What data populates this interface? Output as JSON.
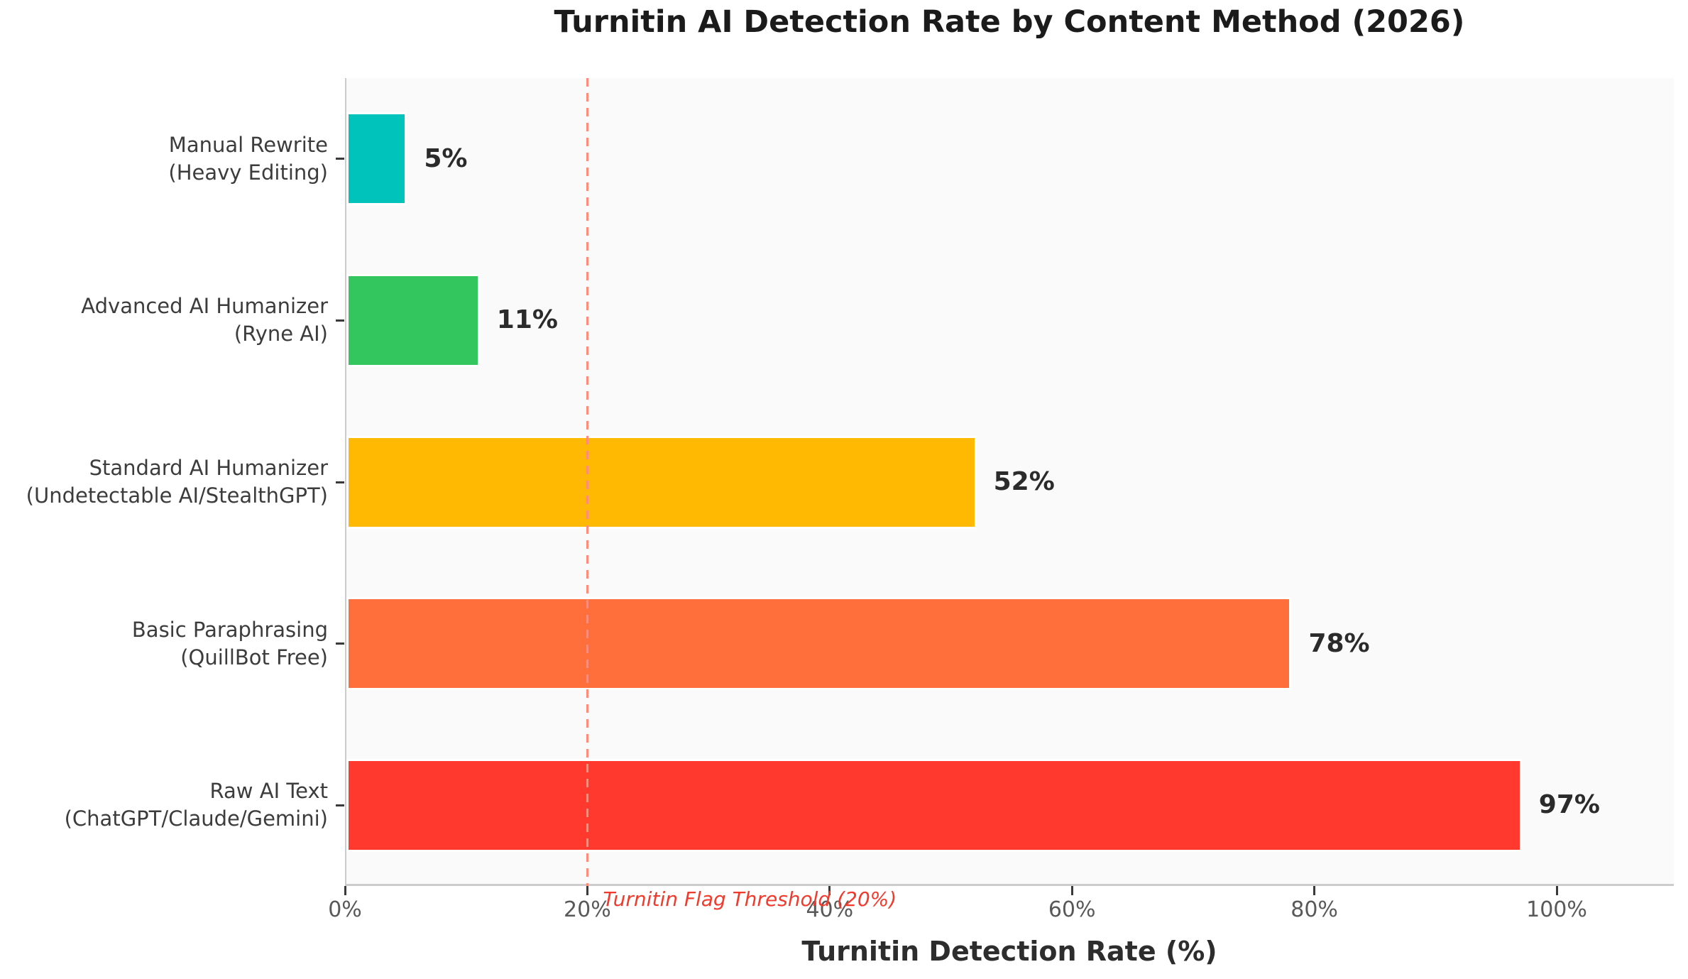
{
  "chart_data": {
    "type": "bar",
    "orientation": "horizontal",
    "title": "Turnitin AI Detection Rate by Content Method (2026)",
    "xlabel": "Turnitin Detection Rate (%)",
    "categories": [
      [
        "Manual Rewrite",
        "(Heavy Editing)"
      ],
      [
        "Advanced AI Humanizer",
        "(Ryne AI)"
      ],
      [
        "Standard AI Humanizer",
        "(Undetectable AI/StealthGPT)"
      ],
      [
        "Basic Paraphrasing",
        "(QuillBot Free)"
      ],
      [
        "Raw AI Text",
        "(ChatGPT/Claude/Gemini)"
      ]
    ],
    "values": [
      5,
      11,
      52,
      78,
      97
    ],
    "value_labels": [
      "5%",
      "11%",
      "52%",
      "78%",
      "97%"
    ],
    "bar_colors": [
      "#00C3BC",
      "#33C55E",
      "#FFB903",
      "#FF6F3C",
      "#FF392E"
    ],
    "xlim": [
      0,
      110
    ],
    "x_ticks": [
      {
        "value": 0,
        "label": "0%"
      },
      {
        "value": 20,
        "label": "20%"
      },
      {
        "value": 40,
        "label": "40%"
      },
      {
        "value": 60,
        "label": "60%"
      },
      {
        "value": 80,
        "label": "80%"
      },
      {
        "value": 100,
        "label": "100%"
      }
    ],
    "grid": false,
    "legend": "none",
    "plot_background": "#FAFAFA",
    "threshold_line": {
      "value": 20,
      "style": "dashed",
      "line_color": "#FF8B7B",
      "label": "Turnitin Flag Threshold (20%)",
      "label_color": "#F23A2C"
    }
  }
}
